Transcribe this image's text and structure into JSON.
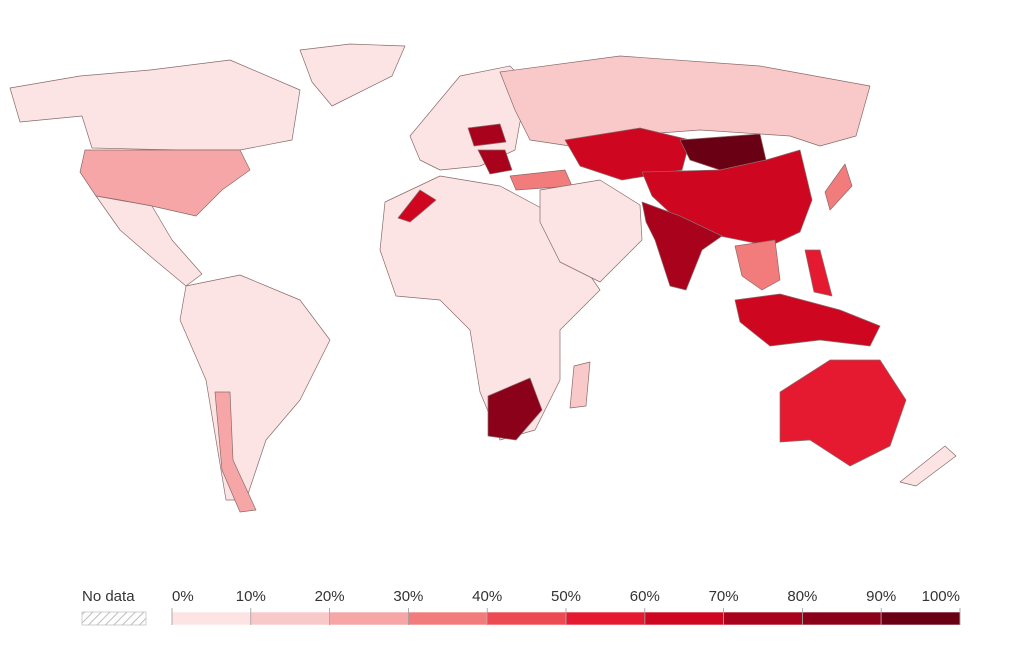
{
  "map": {
    "legend": {
      "no_data_label": "No data",
      "ticks": [
        {
          "value": 0,
          "label": "0%"
        },
        {
          "value": 10,
          "label": "10%"
        },
        {
          "value": 20,
          "label": "20%"
        },
        {
          "value": 30,
          "label": "30%"
        },
        {
          "value": 40,
          "label": "40%"
        },
        {
          "value": 50,
          "label": "50%"
        },
        {
          "value": 60,
          "label": "60%"
        },
        {
          "value": 70,
          "label": "70%"
        },
        {
          "value": 80,
          "label": "80%"
        },
        {
          "value": 90,
          "label": "90%"
        },
        {
          "value": 100,
          "label": "100%"
        }
      ],
      "colors": [
        "#fce4e4",
        "#f9c9c9",
        "#f6a6a6",
        "#f27c7c",
        "#ee4a52",
        "#e51a31",
        "#cf0620",
        "#a9021c",
        "#8b0119",
        "#6a0013"
      ]
    },
    "regions": [
      {
        "value": 5
      },
      {
        "value": 8
      },
      {
        "value": 20
      },
      {
        "value": 7
      },
      {
        "value": 5
      },
      {
        "value": 22
      },
      {
        "value": 9
      },
      {
        "value": 15
      },
      {
        "value": 70
      },
      {
        "value": 75
      },
      {
        "value": 35
      },
      {
        "value": 3
      },
      {
        "value": 65
      },
      {
        "value": 85
      },
      {
        "value": 2
      },
      {
        "value": 65
      },
      {
        "value": 92
      },
      {
        "value": 62
      },
      {
        "value": 75
      },
      {
        "value": 32
      },
      {
        "value": 60
      },
      {
        "value": 55
      },
      {
        "value": 50
      },
      {
        "value": 30
      },
      {
        "value": 5
      },
      {
        "value": 15
      }
    ]
  }
}
